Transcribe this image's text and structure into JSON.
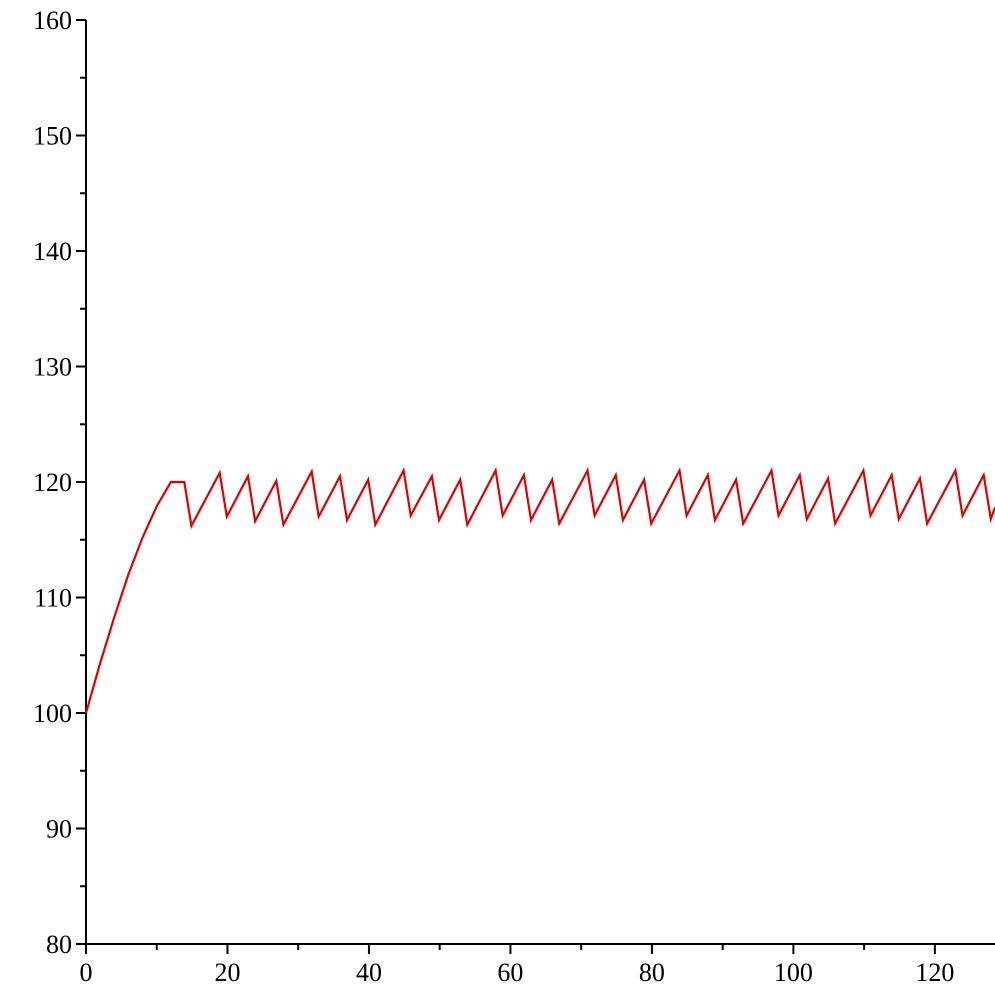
{
  "chart_data": {
    "type": "line",
    "title": "",
    "xlabel": "",
    "ylabel": "",
    "xlim": [
      0,
      128.5
    ],
    "ylim": [
      80,
      160
    ],
    "x_ticks": [
      0,
      20,
      40,
      60,
      80,
      100,
      120
    ],
    "y_ticks": [
      80,
      90,
      100,
      110,
      120,
      130,
      140,
      150,
      160
    ],
    "x_tick_labels": [
      "0",
      "20",
      "40",
      "60",
      "80",
      "100",
      "120"
    ],
    "y_tick_labels": [
      "80",
      "90",
      "100",
      "110",
      "120",
      "130",
      "140",
      "150",
      "160"
    ],
    "grid": false,
    "series": [
      {
        "color": "#e00000",
        "x": [
          0,
          2,
          4,
          6,
          8,
          10,
          12,
          13.9,
          14.9,
          18.9,
          19.9,
          22.9,
          23.9,
          26.9,
          27.9,
          31.9,
          32.9,
          35.9,
          36.9,
          39.9,
          40.9,
          44.9,
          45.9,
          48.9,
          49.9,
          52.9,
          53.9,
          57.9,
          58.9,
          61.9,
          62.9,
          65.9,
          66.9,
          70.9,
          71.9,
          74.9,
          75.9,
          78.9,
          79.9,
          83.9,
          84.9,
          87.9,
          88.9,
          91.9,
          92.9,
          96.9,
          97.9,
          100.9,
          101.9,
          104.9,
          105.9,
          109.9,
          110.9,
          113.9,
          114.9,
          117.9,
          118.9,
          122.9,
          123.9,
          126.9,
          127.9,
          128.5
        ],
        "y": [
          100,
          104.3,
          108.3,
          112,
          115.2,
          117.9,
          120,
          120,
          116.2,
          120.8,
          117,
          120.5,
          116.6,
          120.1,
          116.3,
          120.9,
          117,
          120.5,
          116.7,
          120.2,
          116.3,
          121,
          117.1,
          120.5,
          116.7,
          120.2,
          116.3,
          121,
          117.1,
          120.6,
          116.7,
          120.2,
          116.4,
          121,
          117.1,
          120.6,
          116.7,
          120.2,
          116.4,
          121,
          117.1,
          120.6,
          116.7,
          120.2,
          116.4,
          121,
          117.1,
          120.6,
          116.8,
          120.3,
          116.4,
          121,
          117.1,
          120.6,
          116.8,
          120.3,
          116.4,
          121,
          117.1,
          120.6,
          116.8,
          117.8
        ]
      }
    ]
  }
}
